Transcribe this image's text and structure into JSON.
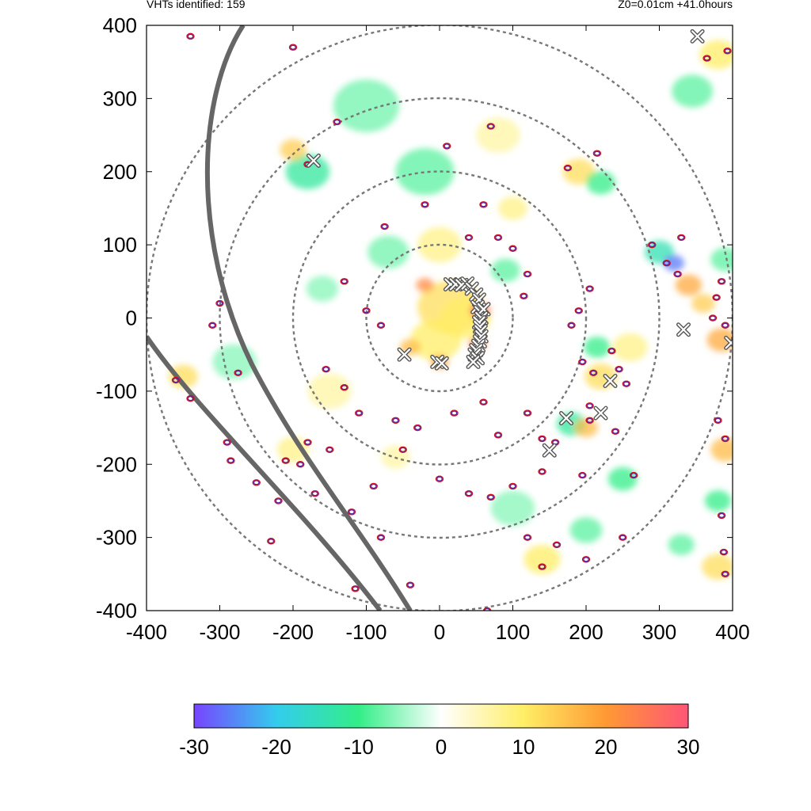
{
  "header": {
    "left_text": "VHTs identified: 159",
    "right_text": "Z0=0.01cm  +41.0hours"
  },
  "chart_data": {
    "type": "heatmap",
    "title": "",
    "xlabel": "",
    "ylabel": "",
    "xlim": [
      -400,
      400
    ],
    "ylim": [
      -400,
      400
    ],
    "x_ticks": [
      -400,
      -300,
      -200,
      -100,
      0,
      100,
      200,
      300,
      400
    ],
    "y_ticks": [
      -400,
      -300,
      -200,
      -100,
      0,
      100,
      200,
      300,
      400
    ],
    "grid": false,
    "range_rings": [
      100,
      200,
      300,
      400
    ],
    "colorbar": {
      "min": -30,
      "max": 30,
      "ticks": [
        -30,
        -20,
        -10,
        0,
        10,
        20,
        30
      ],
      "colors": [
        "#7744ff",
        "#33ccee",
        "#33ee88",
        "#ffffff",
        "#ffee66",
        "#ff9933",
        "#ff5577"
      ]
    },
    "coastline_color": "#666666",
    "vht_marker_color": "#555555",
    "vht_markers": [
      {
        "x": 352,
        "y": 385
      },
      {
        "x": -172,
        "y": 215
      },
      {
        "x": 15,
        "y": 46
      },
      {
        "x": 22,
        "y": 46
      },
      {
        "x": 30,
        "y": 45
      },
      {
        "x": 38,
        "y": 47
      },
      {
        "x": 44,
        "y": 40
      },
      {
        "x": 50,
        "y": 32
      },
      {
        "x": 54,
        "y": 25
      },
      {
        "x": 52,
        "y": 15
      },
      {
        "x": 56,
        "y": 8
      },
      {
        "x": 60,
        "y": 12
      },
      {
        "x": 57,
        "y": 0
      },
      {
        "x": 54,
        "y": -6
      },
      {
        "x": 55,
        "y": -12
      },
      {
        "x": 56,
        "y": -18
      },
      {
        "x": 57,
        "y": -25
      },
      {
        "x": 55,
        "y": -32
      },
      {
        "x": 53,
        "y": -38
      },
      {
        "x": 50,
        "y": -44
      },
      {
        "x": 48,
        "y": -50
      },
      {
        "x": 52,
        "y": -55
      },
      {
        "x": 46,
        "y": -60
      },
      {
        "x": -48,
        "y": -50
      },
      {
        "x": -3,
        "y": -60
      },
      {
        "x": 3,
        "y": -62
      },
      {
        "x": 333,
        "y": -16
      },
      {
        "x": 398,
        "y": -34
      },
      {
        "x": 233,
        "y": -86
      },
      {
        "x": 220,
        "y": -130
      },
      {
        "x": 173,
        "y": -137
      },
      {
        "x": 150,
        "y": -181
      }
    ],
    "contours": [
      {
        "x": -180,
        "y": 210
      },
      {
        "x": -140,
        "y": 268
      },
      {
        "x": 70,
        "y": 262
      },
      {
        "x": 10,
        "y": 235
      },
      {
        "x": 175,
        "y": 205
      },
      {
        "x": 215,
        "y": 225
      },
      {
        "x": 290,
        "y": 100
      },
      {
        "x": 310,
        "y": 75
      },
      {
        "x": 325,
        "y": 60
      },
      {
        "x": 330,
        "y": 110
      },
      {
        "x": 385,
        "y": 50
      },
      {
        "x": 378,
        "y": 28
      },
      {
        "x": 390,
        "y": -10
      },
      {
        "x": 205,
        "y": 40
      },
      {
        "x": 190,
        "y": 10
      },
      {
        "x": 180,
        "y": -10
      },
      {
        "x": 195,
        "y": -60
      },
      {
        "x": 210,
        "y": -75
      },
      {
        "x": 235,
        "y": -45
      },
      {
        "x": 245,
        "y": -70
      },
      {
        "x": 255,
        "y": -90
      },
      {
        "x": 205,
        "y": -140
      },
      {
        "x": 240,
        "y": -155
      },
      {
        "x": 195,
        "y": -215
      },
      {
        "x": 265,
        "y": -215
      },
      {
        "x": 205,
        "y": -120
      },
      {
        "x": 120,
        "y": 60
      },
      {
        "x": 115,
        "y": 30
      },
      {
        "x": 100,
        "y": 95
      },
      {
        "x": 80,
        "y": 110
      },
      {
        "x": 60,
        "y": 155
      },
      {
        "x": 40,
        "y": 110
      },
      {
        "x": -20,
        "y": 155
      },
      {
        "x": -75,
        "y": 125
      },
      {
        "x": -130,
        "y": 50
      },
      {
        "x": -100,
        "y": 10
      },
      {
        "x": -80,
        "y": -10
      },
      {
        "x": -155,
        "y": -70
      },
      {
        "x": -130,
        "y": -95
      },
      {
        "x": -110,
        "y": -130
      },
      {
        "x": -60,
        "y": -140
      },
      {
        "x": -30,
        "y": -150
      },
      {
        "x": 20,
        "y": -130
      },
      {
        "x": 60,
        "y": -115
      },
      {
        "x": 80,
        "y": -160
      },
      {
        "x": 120,
        "y": -130
      },
      {
        "x": 140,
        "y": -165
      },
      {
        "x": 100,
        "y": -230
      },
      {
        "x": 70,
        "y": -245
      },
      {
        "x": 40,
        "y": -240
      },
      {
        "x": 0,
        "y": -220
      },
      {
        "x": -50,
        "y": -180
      },
      {
        "x": -90,
        "y": -230
      },
      {
        "x": -150,
        "y": -180
      },
      {
        "x": -180,
        "y": -170
      },
      {
        "x": -190,
        "y": -200
      },
      {
        "x": -170,
        "y": -240
      },
      {
        "x": -210,
        "y": -195
      },
      {
        "x": -120,
        "y": -265
      },
      {
        "x": -80,
        "y": -300
      },
      {
        "x": 120,
        "y": -300
      },
      {
        "x": 140,
        "y": -340
      },
      {
        "x": 160,
        "y": -310
      },
      {
        "x": 200,
        "y": -330
      },
      {
        "x": 250,
        "y": -300
      },
      {
        "x": 380,
        "y": -140
      },
      {
        "x": 390,
        "y": -165
      },
      {
        "x": 385,
        "y": -270
      },
      {
        "x": 388,
        "y": -320
      },
      {
        "x": 390,
        "y": -350
      },
      {
        "x": 373,
        "y": 0
      },
      {
        "x": 365,
        "y": 355
      },
      {
        "x": 393,
        "y": 365
      },
      {
        "x": -200,
        "y": 370
      },
      {
        "x": -340,
        "y": 385
      },
      {
        "x": -300,
        "y": 20
      },
      {
        "x": -310,
        "y": -10
      },
      {
        "x": -275,
        "y": -75
      },
      {
        "x": -340,
        "y": -110
      },
      {
        "x": -360,
        "y": -85
      },
      {
        "x": -290,
        "y": -170
      },
      {
        "x": -285,
        "y": -195
      },
      {
        "x": -250,
        "y": -225
      },
      {
        "x": -220,
        "y": -250
      },
      {
        "x": -230,
        "y": -305
      },
      {
        "x": -115,
        "y": -370
      },
      {
        "x": -40,
        "y": -365
      },
      {
        "x": 65,
        "y": -400
      },
      {
        "x": 140,
        "y": -210
      },
      {
        "x": 158,
        "y": -170
      }
    ],
    "anomalies": [
      {
        "x": 15,
        "y": 15,
        "r": 45,
        "v": 12
      },
      {
        "x": 35,
        "y": 0,
        "r": 35,
        "v": 10
      },
      {
        "x": -5,
        "y": -30,
        "r": 35,
        "v": 10
      },
      {
        "x": 55,
        "y": 10,
        "r": 14,
        "v": 26
      },
      {
        "x": 52,
        "y": -35,
        "r": 12,
        "v": 24
      },
      {
        "x": -20,
        "y": 45,
        "r": 12,
        "v": 22
      },
      {
        "x": 0,
        "y": -60,
        "r": 12,
        "v": 20
      },
      {
        "x": -40,
        "y": -40,
        "r": 14,
        "v": 16
      },
      {
        "x": 0,
        "y": 100,
        "r": 30,
        "v": 8
      },
      {
        "x": -70,
        "y": 90,
        "r": 28,
        "v": -7
      },
      {
        "x": 90,
        "y": 65,
        "r": 20,
        "v": -8
      },
      {
        "x": -20,
        "y": 200,
        "r": 40,
        "v": -8
      },
      {
        "x": -100,
        "y": 290,
        "r": 45,
        "v": -7
      },
      {
        "x": 80,
        "y": 250,
        "r": 30,
        "v": 6
      },
      {
        "x": 190,
        "y": 200,
        "r": 22,
        "v": 12
      },
      {
        "x": 220,
        "y": 185,
        "r": 20,
        "v": -10
      },
      {
        "x": -180,
        "y": 200,
        "r": 30,
        "v": -12
      },
      {
        "x": -200,
        "y": 230,
        "r": 18,
        "v": 14
      },
      {
        "x": 300,
        "y": 90,
        "r": 20,
        "v": -14
      },
      {
        "x": 320,
        "y": 75,
        "r": 14,
        "v": -26
      },
      {
        "x": 340,
        "y": 45,
        "r": 18,
        "v": 18
      },
      {
        "x": 360,
        "y": 20,
        "r": 16,
        "v": 14
      },
      {
        "x": 385,
        "y": -30,
        "r": 20,
        "v": 18
      },
      {
        "x": 345,
        "y": 310,
        "r": 28,
        "v": -8
      },
      {
        "x": 380,
        "y": 360,
        "r": 25,
        "v": 10
      },
      {
        "x": 220,
        "y": -80,
        "r": 22,
        "v": 12
      },
      {
        "x": 215,
        "y": -40,
        "r": 18,
        "v": -10
      },
      {
        "x": 180,
        "y": -145,
        "r": 20,
        "v": -12
      },
      {
        "x": 200,
        "y": -150,
        "r": 16,
        "v": 16
      },
      {
        "x": 140,
        "y": -330,
        "r": 25,
        "v": 10
      },
      {
        "x": 100,
        "y": -260,
        "r": 30,
        "v": -6
      },
      {
        "x": 200,
        "y": -290,
        "r": 22,
        "v": -8
      },
      {
        "x": 390,
        "y": -180,
        "r": 20,
        "v": 16
      },
      {
        "x": 380,
        "y": -250,
        "r": 18,
        "v": -10
      },
      {
        "x": -150,
        "y": -100,
        "r": 30,
        "v": 6
      },
      {
        "x": -200,
        "y": -180,
        "r": 22,
        "v": 8
      },
      {
        "x": -280,
        "y": -60,
        "r": 30,
        "v": -6
      },
      {
        "x": -350,
        "y": -80,
        "r": 20,
        "v": 12
      },
      {
        "x": 390,
        "y": 80,
        "r": 20,
        "v": -8
      },
      {
        "x": 260,
        "y": -40,
        "r": 24,
        "v": 8
      },
      {
        "x": 250,
        "y": -220,
        "r": 20,
        "v": -10
      },
      {
        "x": -160,
        "y": 40,
        "r": 22,
        "v": -6
      },
      {
        "x": 100,
        "y": 150,
        "r": 20,
        "v": 8
      },
      {
        "x": -60,
        "y": -190,
        "r": 20,
        "v": 6
      },
      {
        "x": 380,
        "y": -340,
        "r": 22,
        "v": 12
      },
      {
        "x": 330,
        "y": -310,
        "r": 18,
        "v": -8
      }
    ]
  }
}
